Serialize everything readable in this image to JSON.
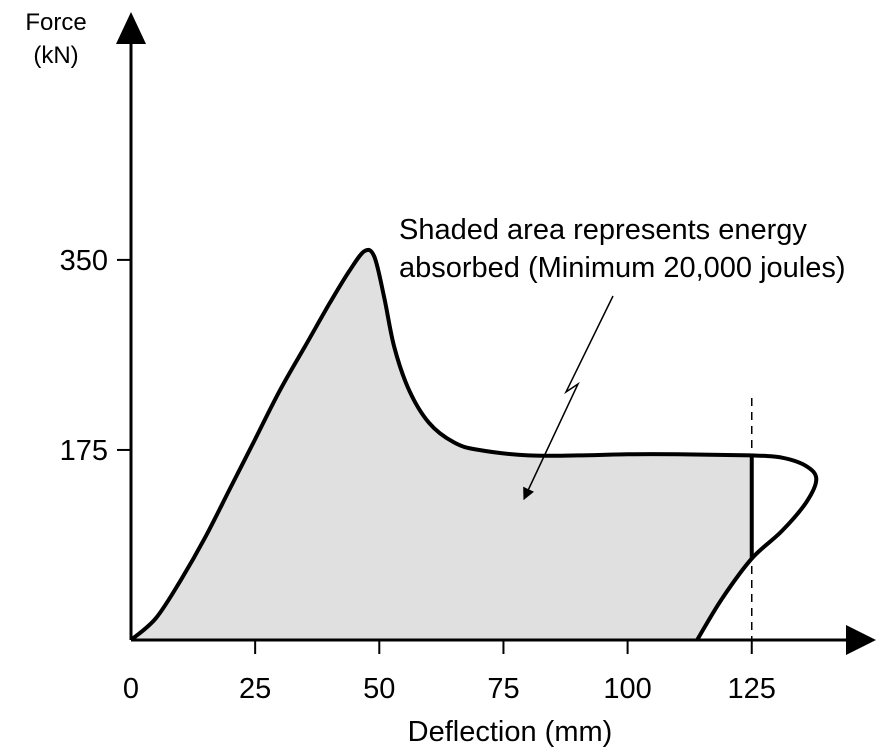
{
  "chart_data": {
    "type": "area",
    "ylabel_line1": "Force",
    "ylabel_line2": "(kN)",
    "xlabel": "Deflection (mm)",
    "x_ticks": [
      0,
      25,
      50,
      75,
      100,
      125
    ],
    "y_ticks": [
      175,
      350
    ],
    "xlim": [
      0,
      150
    ],
    "ylim": [
      0,
      430
    ],
    "annotation_line1": "Shaded area represents energy",
    "annotation_line2": "absorbed (Minimum 20,000 joules)",
    "dashed_marker_x": 125,
    "loading_curve": [
      {
        "x": 0,
        "y": 0
      },
      {
        "x": 5,
        "y": 20
      },
      {
        "x": 10,
        "y": 55
      },
      {
        "x": 15,
        "y": 95
      },
      {
        "x": 20,
        "y": 140
      },
      {
        "x": 25,
        "y": 185
      },
      {
        "x": 30,
        "y": 230
      },
      {
        "x": 35,
        "y": 270
      },
      {
        "x": 40,
        "y": 310
      },
      {
        "x": 44,
        "y": 340
      },
      {
        "x": 47,
        "y": 358
      },
      {
        "x": 49,
        "y": 353
      },
      {
        "x": 51,
        "y": 315
      },
      {
        "x": 53,
        "y": 270
      },
      {
        "x": 56,
        "y": 230
      },
      {
        "x": 60,
        "y": 200
      },
      {
        "x": 65,
        "y": 182
      },
      {
        "x": 70,
        "y": 175
      },
      {
        "x": 80,
        "y": 170
      },
      {
        "x": 90,
        "y": 170
      },
      {
        "x": 100,
        "y": 171
      },
      {
        "x": 110,
        "y": 171
      },
      {
        "x": 125,
        "y": 170
      }
    ],
    "unloading_curve": [
      {
        "x": 125,
        "y": 170
      },
      {
        "x": 131,
        "y": 168
      },
      {
        "x": 136,
        "y": 160
      },
      {
        "x": 138,
        "y": 148
      },
      {
        "x": 136,
        "y": 127
      },
      {
        "x": 131,
        "y": 100
      },
      {
        "x": 125,
        "y": 75
      },
      {
        "x": 119,
        "y": 38
      },
      {
        "x": 114,
        "y": 0
      }
    ],
    "shaded_region_x_end": 125,
    "shaded_region_y_at_end": 75,
    "colors": {
      "fill": "#e0e0e0",
      "stroke": "#000000"
    }
  }
}
